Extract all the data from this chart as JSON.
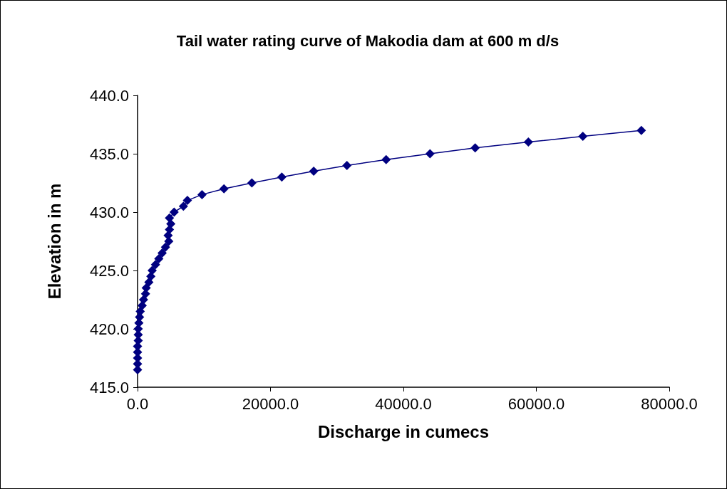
{
  "chart_data": {
    "type": "line",
    "title": "Tail water rating curve of Makodia dam at 600 m d/s",
    "xlabel": "Discharge in cumecs",
    "ylabel": "Elevation in m",
    "xlim": [
      0,
      80000
    ],
    "xticks": [
      {
        "value": 0,
        "label": "0.0"
      },
      {
        "value": 20000,
        "label": "20000.0"
      },
      {
        "value": 40000,
        "label": "40000.0"
      },
      {
        "value": 60000,
        "label": "60000.0"
      },
      {
        "value": 80000,
        "label": "80000.0"
      }
    ],
    "ylim": [
      415,
      440
    ],
    "yticks": [
      {
        "value": 415,
        "label": "415.0"
      },
      {
        "value": 420,
        "label": "420.0"
      },
      {
        "value": 425,
        "label": "425.0"
      },
      {
        "value": 430,
        "label": "430.0"
      },
      {
        "value": 435,
        "label": "435.0"
      },
      {
        "value": 440,
        "label": "440.0"
      }
    ],
    "marker": "diamond",
    "line_style": "solid",
    "series": [
      {
        "color": "#000080",
        "x": [
          0,
          0,
          0,
          0,
          0,
          100,
          100,
          100,
          200,
          300,
          400,
          700,
          900,
          1200,
          1300,
          1700,
          2000,
          2200,
          2700,
          3200,
          3700,
          4200,
          4700,
          4600,
          4800,
          5000,
          4800,
          5500,
          6900,
          7500,
          9700,
          13000,
          17200,
          21700,
          26500,
          31500,
          37400,
          44000,
          50800,
          58800,
          67000,
          75800
        ],
        "values": [
          416.5,
          417.0,
          417.5,
          418.0,
          418.5,
          419.0,
          419.5,
          420.0,
          420.5,
          421.0,
          421.5,
          422.0,
          422.5,
          423.0,
          423.5,
          424.0,
          424.5,
          425.0,
          425.5,
          426.0,
          426.5,
          427.0,
          427.5,
          428.0,
          428.5,
          429.0,
          429.5,
          430.0,
          430.5,
          431.0,
          431.5,
          432.0,
          432.5,
          433.0,
          433.5,
          434.0,
          434.5,
          435.0,
          435.5,
          436.0,
          436.5,
          437.0
        ]
      }
    ]
  }
}
